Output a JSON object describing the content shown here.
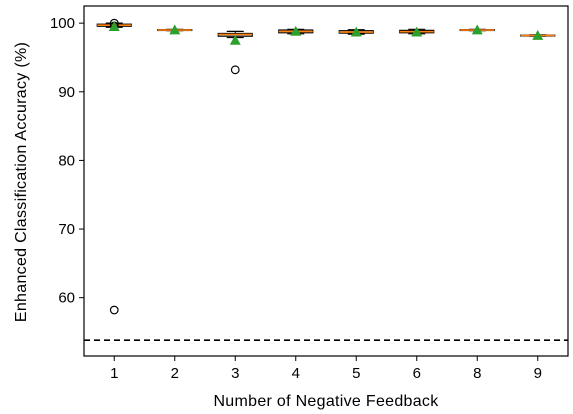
{
  "chart_data": {
    "type": "box",
    "title": "",
    "xlabel": "Number of Negative Feedback",
    "ylabel": "Enhanced Classification Accuracy (%)",
    "categories": [
      "1",
      "2",
      "3",
      "4",
      "5",
      "6",
      "8",
      "9"
    ],
    "ylim": [
      51.5,
      102.5
    ],
    "yticks": [
      60,
      70,
      80,
      90,
      100
    ],
    "boxes": [
      {
        "category": "1",
        "q1": 99.55,
        "median": 99.7,
        "q3": 99.85,
        "whisker_low": 99.4,
        "whisker_high": 100.0,
        "mean": 99.5,
        "outliers": [
          100.0,
          99.6,
          58.2
        ]
      },
      {
        "category": "2",
        "q1": 98.95,
        "median": 99.0,
        "q3": 99.05,
        "whisker_low": 98.9,
        "whisker_high": 99.1,
        "mean": 99.0,
        "outliers": []
      },
      {
        "category": "3",
        "q1": 98.1,
        "median": 98.35,
        "q3": 98.5,
        "whisker_low": 97.9,
        "whisker_high": 98.8,
        "mean": 97.5,
        "outliers": [
          93.2
        ]
      },
      {
        "category": "4",
        "q1": 98.6,
        "median": 98.8,
        "q3": 99.0,
        "whisker_low": 98.45,
        "whisker_high": 99.1,
        "mean": 98.8,
        "outliers": []
      },
      {
        "category": "5",
        "q1": 98.55,
        "median": 98.7,
        "q3": 98.9,
        "whisker_low": 98.4,
        "whisker_high": 99.05,
        "mean": 98.7,
        "outliers": []
      },
      {
        "category": "6",
        "q1": 98.6,
        "median": 98.75,
        "q3": 98.95,
        "whisker_low": 98.45,
        "whisker_high": 99.1,
        "mean": 98.7,
        "outliers": []
      },
      {
        "category": "8",
        "q1": 98.95,
        "median": 99.0,
        "q3": 99.05,
        "whisker_low": 98.9,
        "whisker_high": 99.1,
        "mean": 99.0,
        "outliers": []
      },
      {
        "category": "9",
        "q1": 98.15,
        "median": 98.2,
        "q3": 98.25,
        "whisker_low": 98.1,
        "whisker_high": 98.3,
        "mean": 98.2,
        "outliers": []
      }
    ],
    "reference_line": {
      "y": 53.8,
      "style": "dashed",
      "color": "#000000"
    },
    "colors": {
      "median": "#ff7f0e",
      "mean": "#2ca02c",
      "box": "#000000"
    },
    "grid": false,
    "legend": "none"
  }
}
